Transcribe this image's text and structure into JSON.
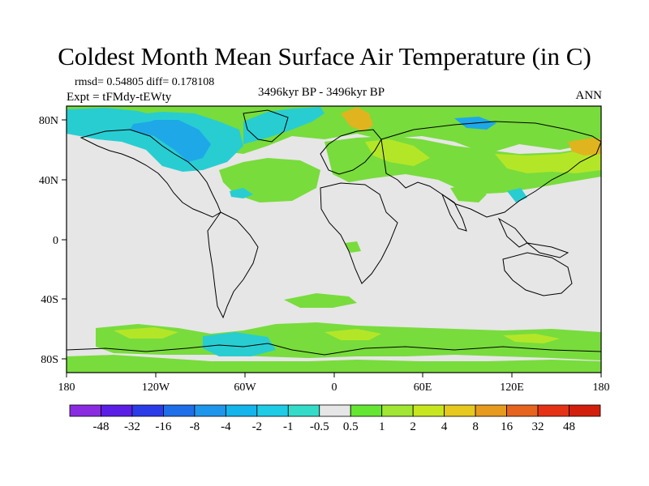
{
  "figure": {
    "title": "Coldest Month Mean Surface Air Temperature (in C)",
    "stats": "rmsd= 0.54805 diff= 0.178108",
    "experiment": "Expt = tFMdy-tEWty",
    "period": "3496kyr BP - 3496kyr BP",
    "season": "ANN"
  },
  "axes": {
    "x_ticks": [
      "180",
      "120W",
      "60W",
      "0",
      "60E",
      "120E",
      "180"
    ],
    "y_ticks": [
      "80N",
      "40N",
      "0",
      "40S",
      "80S"
    ]
  },
  "colorbar": {
    "labels": [
      "-48",
      "-32",
      "-16",
      "-8",
      "-4",
      "-2",
      "-1",
      "-0.5",
      "0.5",
      "1",
      "2",
      "4",
      "8",
      "16",
      "32",
      "48"
    ],
    "colors": [
      "#8a2be2",
      "#5a1ee6",
      "#2a3ce8",
      "#1e6eea",
      "#1e96ec",
      "#14b4ec",
      "#1ecce6",
      "#32dcc8",
      "#e6e6e6",
      "#64e632",
      "#a0e632",
      "#c8e61e",
      "#e6c81e",
      "#e69a1e",
      "#e6641e",
      "#e63214",
      "#d21e0a"
    ]
  },
  "style": {
    "ocean_background": "#e6e6e6",
    "positive_weak": "#78dc3c",
    "positive_mid": "#b4e628",
    "positive_strong": "#e0b41e",
    "negative_weak": "#28cdd2",
    "negative_mid": "#1ea8e8"
  }
}
